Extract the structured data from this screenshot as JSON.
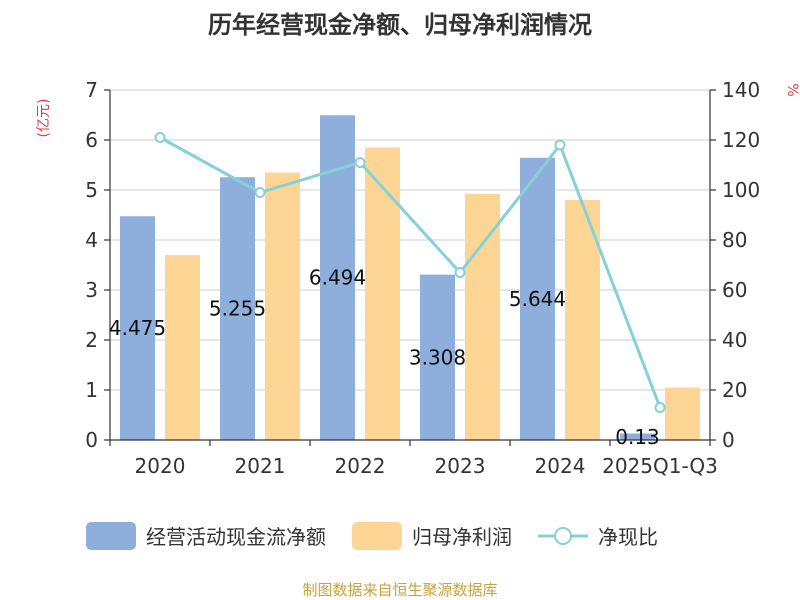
{
  "chart_data": {
    "type": "bar",
    "title": "历年经营现金净额、归母净利润情况",
    "categories": [
      "2020",
      "2021",
      "2022",
      "2023",
      "2024",
      "2025Q1-Q3"
    ],
    "series": [
      {
        "name": "经营活动现金流净额",
        "type": "bar",
        "axis": "left",
        "color": "#8eaedb",
        "values": [
          4.475,
          5.255,
          6.494,
          3.308,
          5.644,
          0.13
        ],
        "labels": [
          "4.475",
          "5.255",
          "6.494",
          "3.308",
          "5.644",
          "0.13"
        ]
      },
      {
        "name": "归母净利润",
        "type": "bar",
        "axis": "left",
        "color": "#fdd696",
        "values": [
          3.7,
          5.35,
          5.85,
          4.92,
          4.8,
          1.05
        ]
      },
      {
        "name": "净现比",
        "type": "line",
        "axis": "right",
        "color": "#86d0d8",
        "values": [
          121,
          99,
          111,
          67,
          118,
          13
        ]
      }
    ],
    "y_left": {
      "unit": "(亿元)",
      "min": 0,
      "max": 7,
      "ticks": [
        "0",
        "1",
        "2",
        "3",
        "4",
        "5",
        "6",
        "7"
      ]
    },
    "y_right": {
      "unit": "%",
      "min": 0,
      "max": 140,
      "ticks": [
        "0",
        "20",
        "40",
        "60",
        "80",
        "100",
        "120",
        "140"
      ]
    },
    "grid": true,
    "legend_position": "bottom"
  },
  "source": "制图数据来自恒生聚源数据库"
}
